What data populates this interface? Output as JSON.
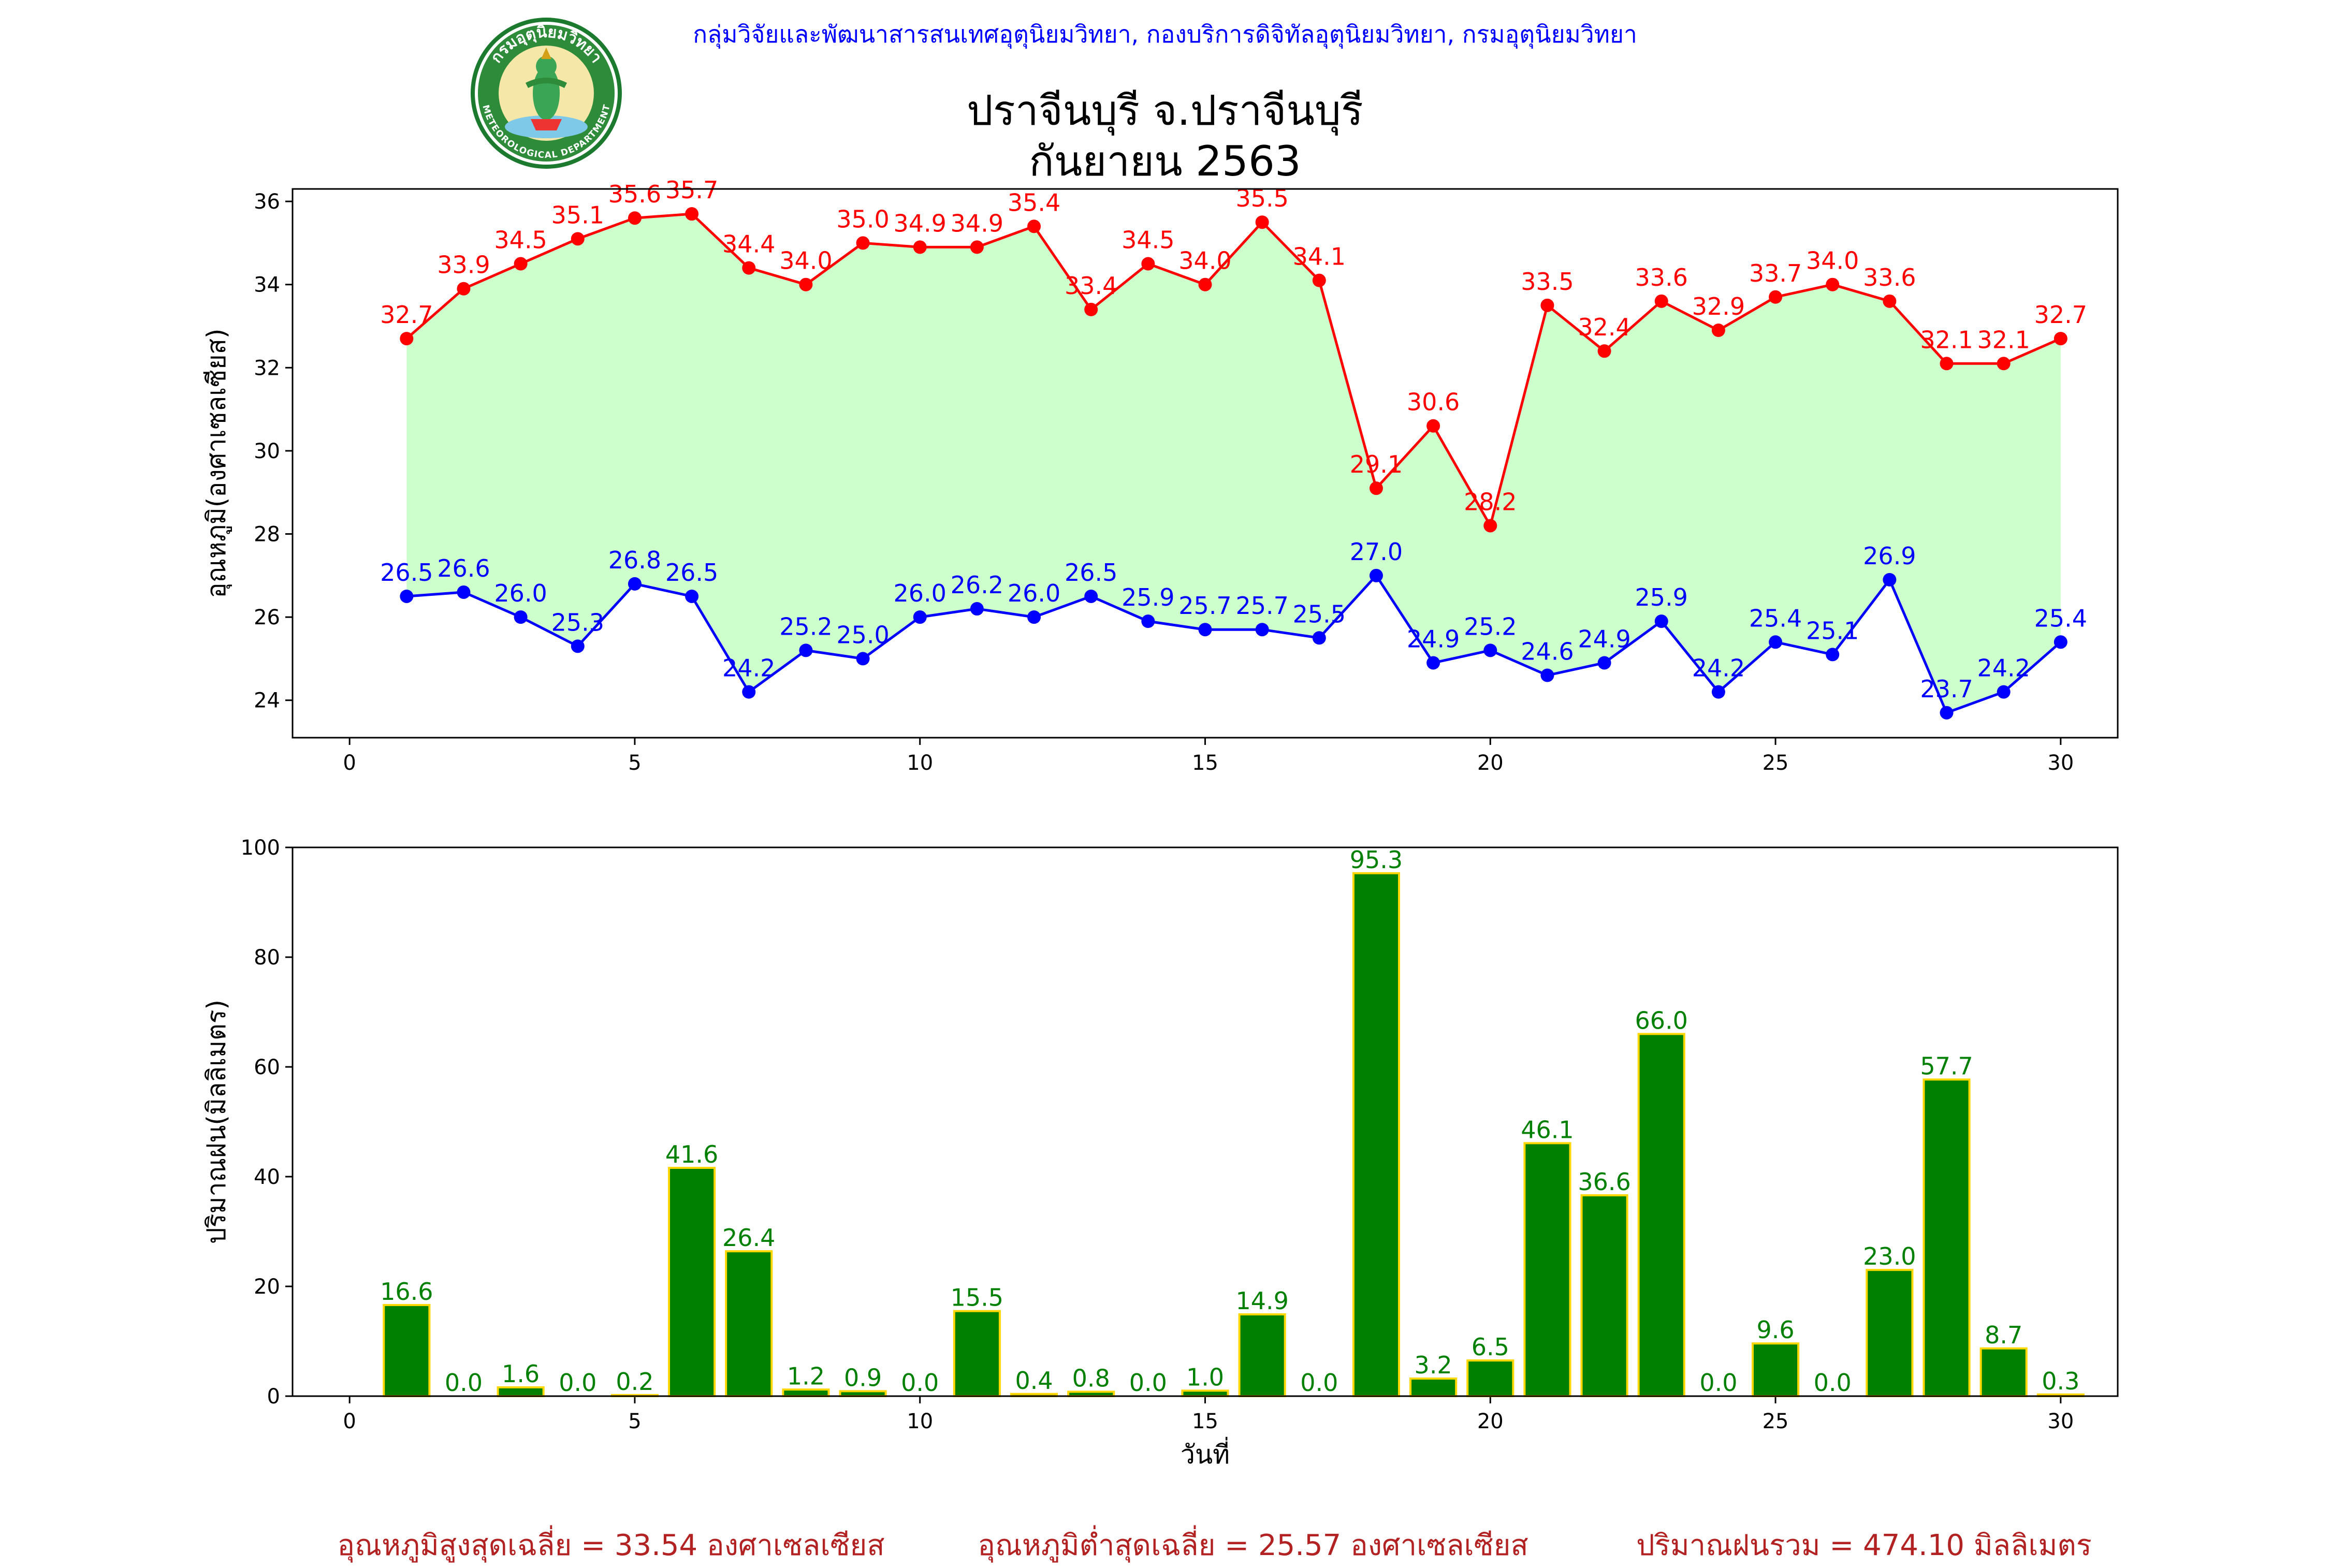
{
  "header": {
    "agency": "กลุ่มวิจัยและพัฒนาสารสนเทศอุตุนิยมวิทยา, กองบริการดิจิทัลอุตุนิยมวิทยา, กรมอุตุนิยมวิทยา",
    "station": "ปราจีนบุรี จ.ปราจีนบุรี",
    "month": "กันยายน 2563"
  },
  "logo": {
    "text_top": "กรมอุตุนิยมวิทยา",
    "text_bottom": "METEOROLOGICAL DEPARTMENT"
  },
  "footer": {
    "avg_max": "อุณหภูมิสูงสุดเฉลี่ย = 33.54 องศาเซลเซียส",
    "avg_min": "อุณหภูมิต่ำสุดเฉลี่ย = 25.57 องศาเซลเซียส",
    "total_rain": "ปริมาณฝนรวม = 474.10 มิลลิเมตร"
  },
  "colors": {
    "max_line": "#ff0000",
    "min_line": "#0000ff",
    "fill_between": "#ccffcc",
    "rain_bar": "#008000",
    "rain_edge": "#ffd700",
    "rain_label": "#008000",
    "footer": "#b22222",
    "header": "#0000ff"
  },
  "chart_data": [
    {
      "type": "line",
      "ylabel": "อุณหภูมิ(องศาเซลเซียส)",
      "xlabel": "",
      "xlim": [
        -1,
        31
      ],
      "ylim": [
        23.1,
        36.3
      ],
      "xticks": [
        0,
        5,
        10,
        15,
        20,
        25,
        30
      ],
      "yticks": [
        24,
        26,
        28,
        30,
        32,
        34,
        36
      ],
      "x": [
        1,
        2,
        3,
        4,
        5,
        6,
        7,
        8,
        9,
        10,
        11,
        12,
        13,
        14,
        15,
        16,
        17,
        18,
        19,
        20,
        21,
        22,
        23,
        24,
        25,
        26,
        27,
        28,
        29,
        30
      ],
      "series": [
        {
          "key": "max",
          "values": [
            32.7,
            33.9,
            34.5,
            35.1,
            35.6,
            35.7,
            34.4,
            34.0,
            35.0,
            34.9,
            34.9,
            35.4,
            33.4,
            34.5,
            34.0,
            35.5,
            34.1,
            29.1,
            30.6,
            28.2,
            33.5,
            32.4,
            33.6,
            32.9,
            33.7,
            34.0,
            33.6,
            32.1,
            32.1,
            32.7
          ]
        },
        {
          "key": "min",
          "values": [
            26.5,
            26.6,
            26.0,
            25.3,
            26.8,
            26.5,
            24.2,
            25.2,
            25.0,
            26.0,
            26.2,
            26.0,
            26.5,
            25.9,
            25.7,
            25.7,
            25.5,
            27.0,
            24.9,
            25.2,
            24.6,
            24.9,
            25.9,
            24.2,
            25.4,
            25.1,
            26.9,
            23.7,
            24.2,
            25.4
          ]
        }
      ]
    },
    {
      "type": "bar",
      "ylabel": "ปริมาณฝน(มิลลิเมตร)",
      "xlabel": "วันที่",
      "xlim": [
        -1,
        31
      ],
      "ylim": [
        0,
        100
      ],
      "xticks": [
        0,
        5,
        10,
        15,
        20,
        25,
        30
      ],
      "yticks": [
        0,
        20,
        40,
        60,
        80,
        100
      ],
      "x": [
        1,
        2,
        3,
        4,
        5,
        6,
        7,
        8,
        9,
        10,
        11,
        12,
        13,
        14,
        15,
        16,
        17,
        18,
        19,
        20,
        21,
        22,
        23,
        24,
        25,
        26,
        27,
        28,
        29,
        30
      ],
      "values": [
        16.6,
        0.0,
        1.6,
        0.0,
        0.2,
        41.6,
        26.4,
        1.2,
        0.9,
        0.0,
        15.5,
        0.4,
        0.8,
        0.0,
        1.0,
        14.9,
        0.0,
        95.3,
        3.2,
        6.5,
        46.1,
        36.6,
        66.0,
        0.0,
        9.6,
        0.0,
        23.0,
        57.7,
        8.7,
        0.3
      ]
    }
  ]
}
